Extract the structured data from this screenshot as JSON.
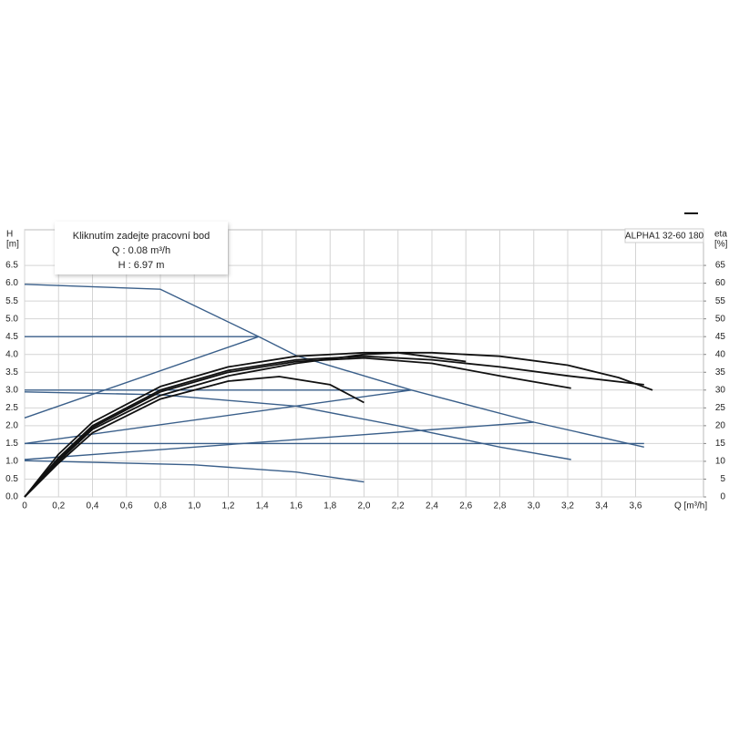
{
  "chart_data": {
    "type": "line",
    "annotation": [
      "Kliknutím zadejte pracovní bod",
      "Q : 0.08 m³/h",
      "H : 6.97 m"
    ],
    "model_label": "ALPHA1 32-60 180",
    "y_label": "H",
    "y_unit": "[m]",
    "y2_label": "eta",
    "y2_unit": "[%]",
    "x_label": "Q [m³/h]",
    "xlim": [
      0,
      4.0
    ],
    "ylim": [
      0,
      7.5
    ],
    "y2lim": [
      0,
      75
    ],
    "grid": true,
    "xticks": [
      0,
      {
        "value": 0.2,
        "label": "0,2"
      },
      {
        "value": 0.4,
        "label": "0,4"
      },
      {
        "value": 0.6,
        "label": "0,6"
      },
      {
        "value": 0.8,
        "label": "0,8"
      },
      {
        "value": 1.0,
        "label": "1,0"
      },
      {
        "value": 1.2,
        "label": "1,2"
      },
      {
        "value": 1.4,
        "label": "1,4"
      },
      {
        "value": 1.6,
        "label": "1,6"
      },
      {
        "value": 1.8,
        "label": "1,8"
      },
      {
        "value": 2.0,
        "label": "2,0"
      },
      {
        "value": 2.2,
        "label": "2,2"
      },
      {
        "value": 2.4,
        "label": "2,4"
      },
      {
        "value": 2.6,
        "label": "2,6"
      },
      {
        "value": 2.8,
        "label": "2,8"
      },
      {
        "value": 3.0,
        "label": "3,0"
      },
      {
        "value": 3.2,
        "label": "3,2"
      },
      {
        "value": 3.4,
        "label": "3,4"
      },
      {
        "value": 3.6,
        "label": "3,6"
      }
    ],
    "yticks": [
      {
        "value": 0,
        "label": "0.0"
      },
      0.5,
      {
        "value": 1,
        "label": "1.0"
      },
      1.5,
      {
        "value": 2,
        "label": "2.0"
      },
      2.5,
      {
        "value": 3,
        "label": "3.0"
      },
      3.5,
      {
        "value": 4,
        "label": "4.0"
      },
      4.5,
      {
        "value": 5,
        "label": "5.0"
      },
      5.5,
      {
        "value": 6,
        "label": "6.0"
      },
      6.5
    ],
    "y2ticks": [
      0,
      5,
      10,
      15,
      20,
      25,
      30,
      35,
      40,
      45,
      50,
      55,
      60,
      65
    ],
    "series": [
      {
        "color": "#3a5f8a",
        "x": [
          0,
          0.8,
          1.38,
          1.6,
          2.28,
          3.0,
          3.65
        ],
        "values": [
          5.97,
          5.83,
          4.5,
          3.97,
          3.0,
          2.1,
          1.4
        ]
      },
      {
        "color": "#3a5f8a",
        "x": [
          0,
          1.38
        ],
        "values": [
          4.5,
          4.5
        ]
      },
      {
        "color": "#3a5f8a",
        "x": [
          0,
          1.38
        ],
        "values": [
          2.22,
          4.5
        ]
      },
      {
        "color": "#3a5f8a",
        "x": [
          0,
          2.28
        ],
        "values": [
          3.0,
          3.0
        ]
      },
      {
        "color": "#3a5f8a",
        "x": [
          0,
          2.28
        ],
        "values": [
          1.5,
          3.0
        ]
      },
      {
        "color": "#3a5f8a",
        "x": [
          0,
          3.65
        ],
        "values": [
          1.5,
          1.5
        ]
      },
      {
        "color": "#3a5f8a",
        "x": [
          0,
          3.0
        ],
        "values": [
          1.05,
          2.1
        ]
      },
      {
        "color": "#3a5f8a",
        "x": [
          0,
          0.8,
          1.6,
          2.2,
          2.8,
          3.22
        ],
        "values": [
          2.95,
          2.87,
          2.55,
          2.0,
          1.4,
          1.05
        ]
      },
      {
        "color": "#3a5f8a",
        "x": [
          0,
          1.0,
          1.6,
          2.0
        ],
        "values": [
          1.02,
          0.9,
          0.7,
          0.42
        ]
      },
      {
        "color": "#111111",
        "axis": "y2",
        "x": [
          0,
          0.2,
          0.4,
          0.8,
          1.2,
          1.6,
          2.0,
          2.4,
          2.8,
          3.2,
          3.5,
          3.7
        ],
        "values": [
          0,
          12,
          21,
          31,
          36.5,
          39.5,
          40.5,
          40.5,
          39.5,
          37,
          33.5,
          30
        ]
      },
      {
        "color": "#111111",
        "axis": "y2",
        "x": [
          0,
          0.2,
          0.4,
          0.8,
          1.2,
          1.6,
          2.0,
          2.4,
          2.8,
          3.2,
          3.65
        ],
        "values": [
          0,
          11,
          20,
          30,
          35.5,
          38.5,
          39.5,
          38.5,
          36.5,
          34,
          31.5
        ]
      },
      {
        "color": "#111111",
        "axis": "y2",
        "x": [
          0,
          0.2,
          0.4,
          0.8,
          1.2,
          1.6,
          2.0,
          2.4,
          2.8,
          3.22
        ],
        "values": [
          0,
          10.5,
          19.5,
          29.5,
          35,
          38,
          39,
          37.5,
          34,
          30.5
        ]
      },
      {
        "color": "#111111",
        "axis": "y2",
        "x": [
          0,
          0.2,
          0.4,
          0.8,
          1.2,
          1.6,
          2.0,
          2.2,
          2.6
        ],
        "values": [
          0,
          10,
          19,
          28.5,
          34,
          37.5,
          40,
          40.5,
          38
        ]
      },
      {
        "color": "#111111",
        "axis": "y2",
        "x": [
          0,
          0.2,
          0.4,
          0.8,
          1.2,
          1.5,
          1.8,
          2.0
        ],
        "values": [
          0,
          9.5,
          18,
          27.5,
          32.5,
          33.8,
          31.5,
          26.5
        ]
      }
    ]
  }
}
